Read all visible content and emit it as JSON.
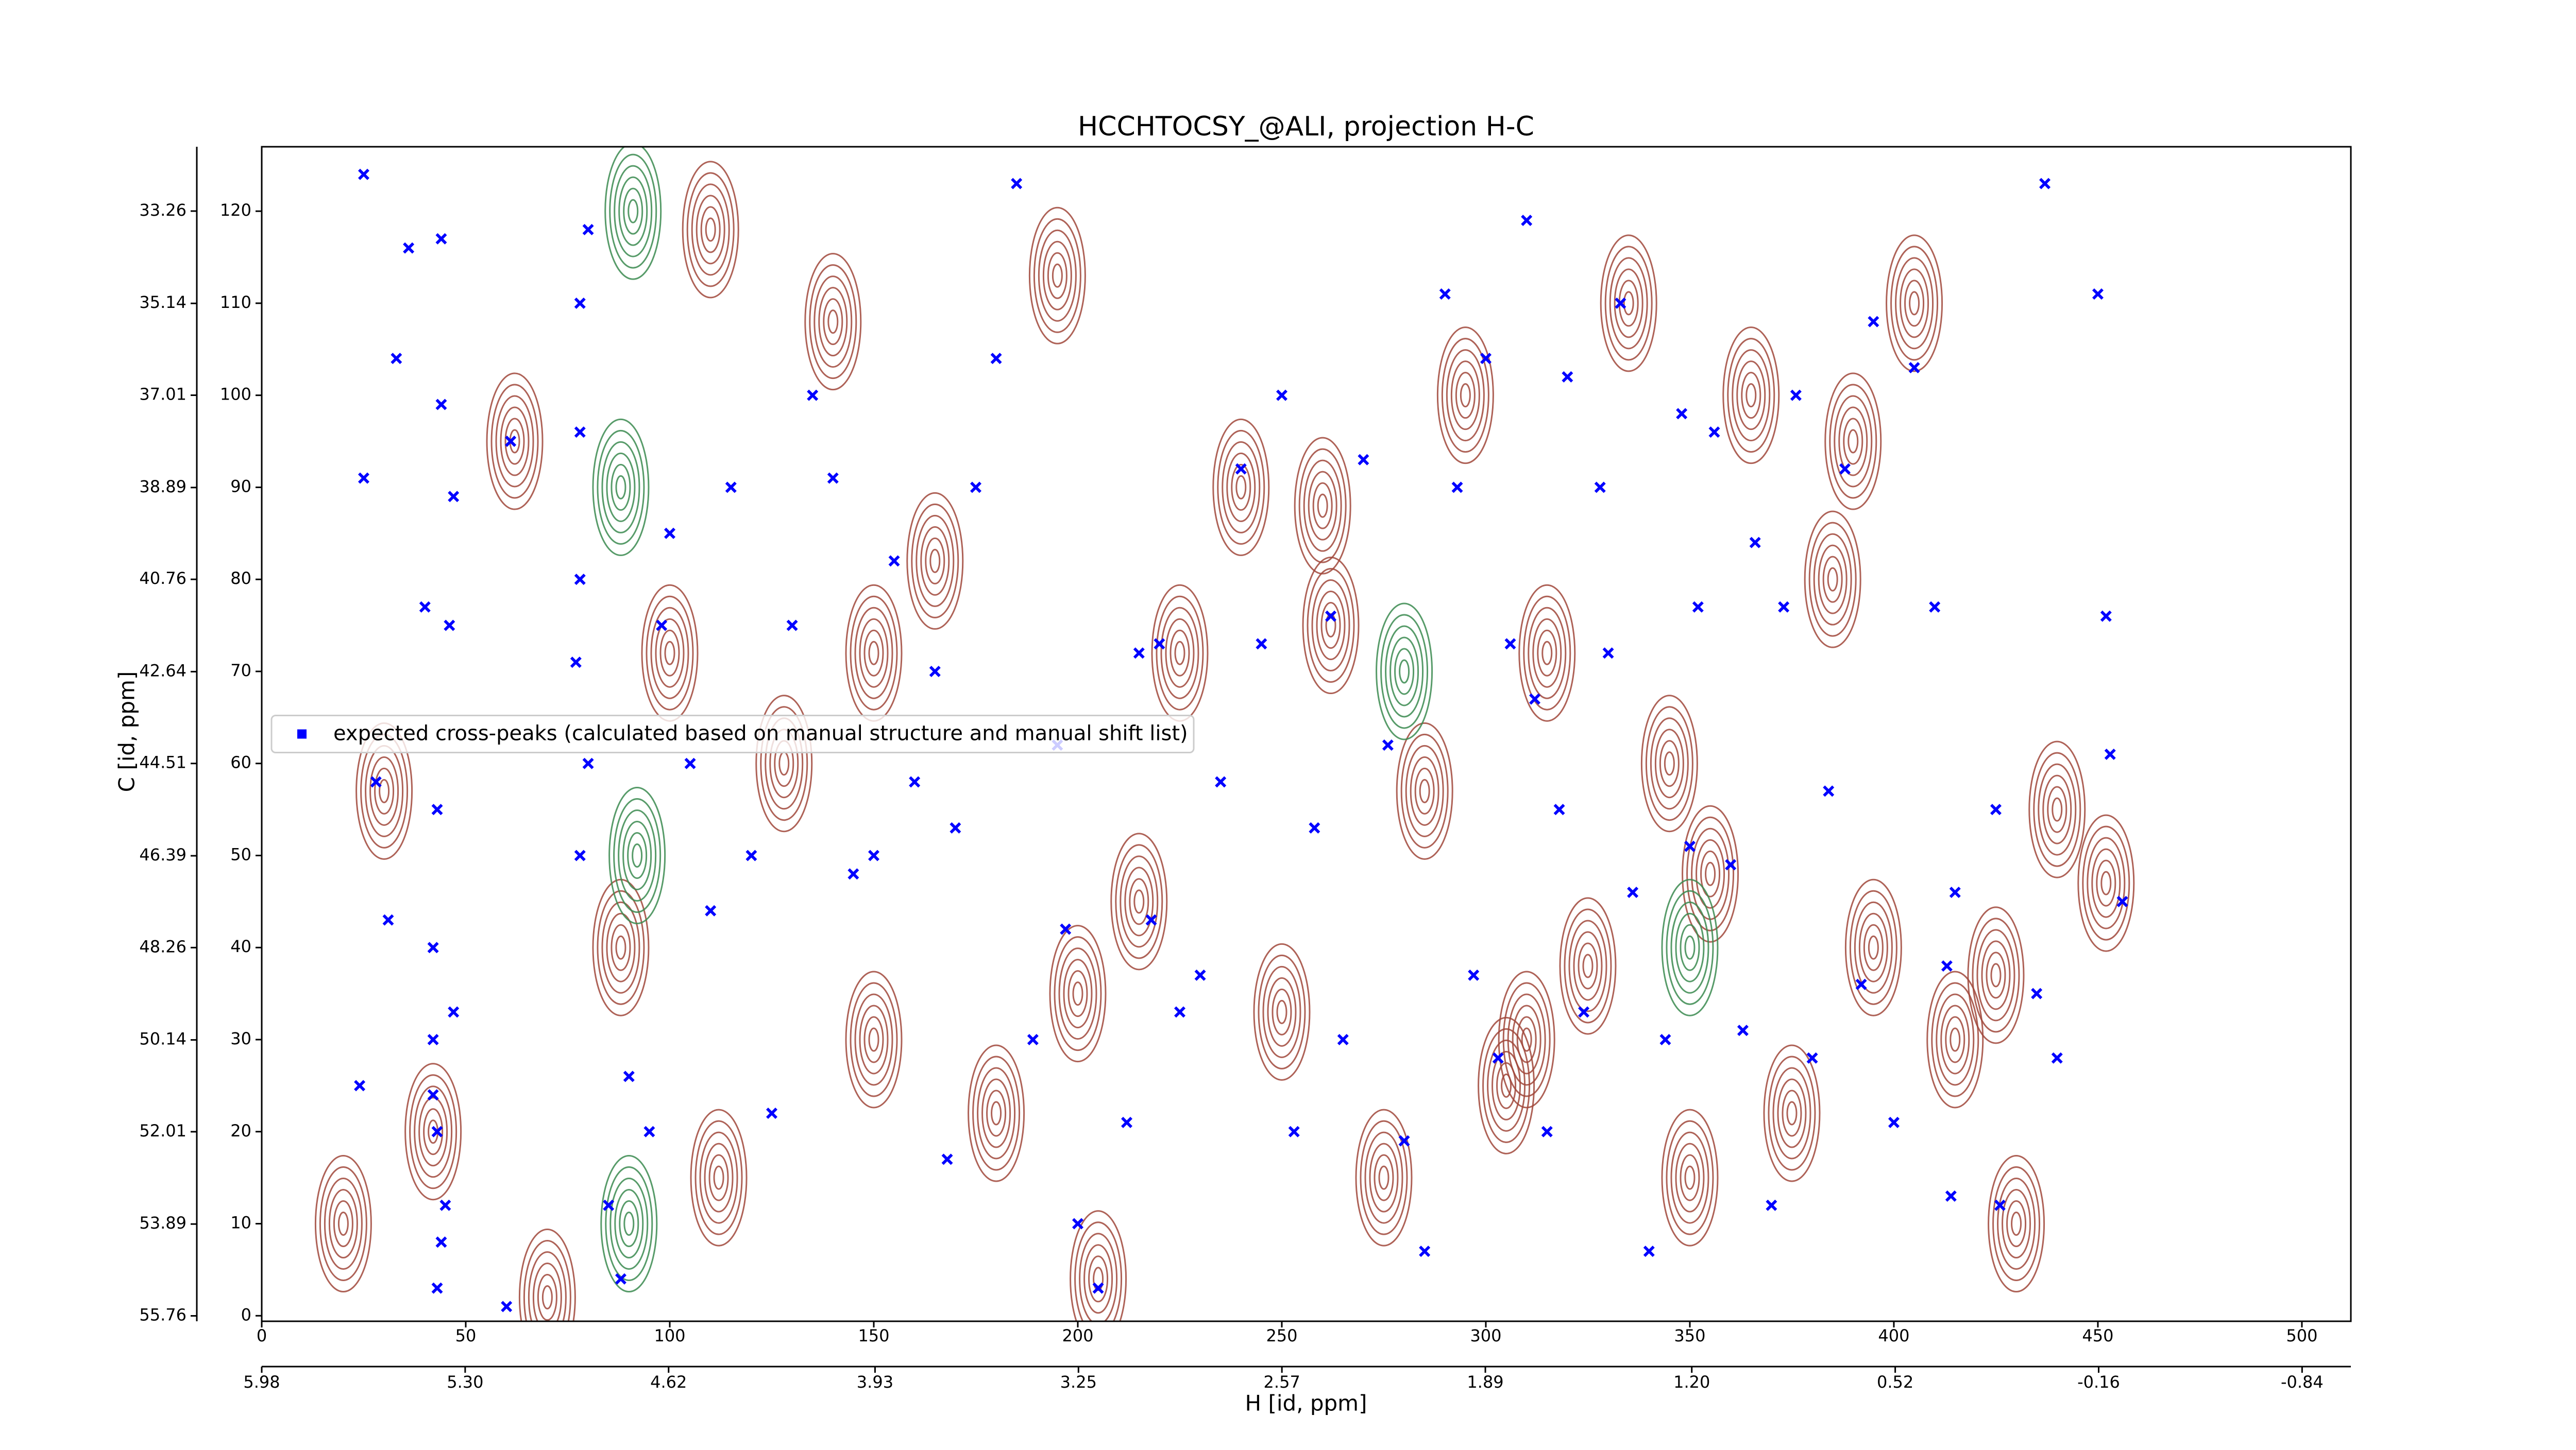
{
  "chart_data": {
    "type": "scatter",
    "title": "HCCHTOCSY_@ALI, projection H-C",
    "x_label": "H [id, ppm]",
    "y_label": "C [id, ppm]",
    "xlim": [
      0,
      512
    ],
    "ylim": [
      -0.6,
      127
    ],
    "xticks": [
      0,
      50,
      100,
      150,
      200,
      250,
      300,
      350,
      400,
      450,
      500
    ],
    "yticks": [
      0,
      10,
      20,
      30,
      40,
      50,
      60,
      70,
      80,
      90,
      100,
      110,
      120
    ],
    "x2lim": [
      5.98,
      -1.003
    ],
    "x2ticks": [
      5.98,
      {
        "value": 5.3,
        "label": "5.30"
      },
      4.62,
      3.93,
      3.25,
      2.57,
      1.89,
      {
        "value": 1.2,
        "label": "1.20"
      },
      0.52,
      -0.16,
      -0.84
    ],
    "y2lim": [
      55.87,
      31.95
    ],
    "y2ticks": [
      55.76,
      53.89,
      52.01,
      50.14,
      48.26,
      46.39,
      44.51,
      42.64,
      40.76,
      38.89,
      37.01,
      35.14,
      33.26
    ],
    "legend_loc": "center left",
    "series": [
      {
        "name": "expected cross-peaks (calculated based on manual structure and manual shift list)",
        "color": "#0000ff",
        "x": [
          25,
          36,
          44,
          33,
          44,
          25,
          47,
          61,
          40,
          46,
          28,
          43,
          31,
          42,
          47,
          42,
          24,
          42,
          43,
          45,
          44,
          43,
          60,
          78,
          80,
          77,
          78,
          78,
          78,
          80,
          85,
          88,
          90,
          95,
          98,
          100,
          105,
          110,
          115,
          120,
          125,
          130,
          135,
          140,
          145,
          150,
          155,
          160,
          165,
          168,
          170,
          175,
          180,
          185,
          189,
          195,
          197,
          200,
          205,
          212,
          215,
          218,
          220,
          225,
          230,
          235,
          240,
          245,
          250,
          253,
          258,
          262,
          265,
          270,
          276,
          280,
          285,
          290,
          293,
          297,
          300,
          303,
          306,
          310,
          312,
          315,
          318,
          320,
          324,
          328,
          330,
          333,
          336,
          340,
          344,
          348,
          350,
          352,
          356,
          360,
          363,
          366,
          370,
          373,
          376,
          380,
          384,
          388,
          392,
          395,
          400,
          405,
          410,
          413,
          415,
          425,
          435,
          440,
          450,
          452,
          456,
          437,
          453,
          414,
          426
        ],
        "values": [
          124,
          116,
          117,
          104,
          99,
          91,
          89,
          95,
          77,
          75,
          58,
          55,
          43,
          40,
          33,
          30,
          25,
          24,
          20,
          12,
          8,
          3,
          1,
          50,
          60,
          71,
          80,
          96,
          110,
          118,
          12,
          4,
          26,
          20,
          75,
          85,
          60,
          44,
          90,
          50,
          22,
          75,
          100,
          91,
          48,
          50,
          82,
          58,
          70,
          17,
          53,
          90,
          104,
          123,
          30,
          62,
          42,
          10,
          3,
          21,
          72,
          43,
          73,
          33,
          37,
          58,
          92,
          73,
          100,
          20,
          53,
          76,
          30,
          93,
          62,
          19,
          7,
          111,
          90,
          37,
          104,
          28,
          73,
          119,
          67,
          20,
          55,
          102,
          33,
          90,
          72,
          110,
          46,
          7,
          30,
          98,
          51,
          77,
          96,
          49,
          31,
          84,
          12,
          77,
          100,
          28,
          57,
          92,
          36,
          108,
          21,
          103,
          77,
          38,
          46,
          55,
          35,
          28,
          111,
          76,
          45,
          123,
          61,
          13,
          12
        ]
      }
    ],
    "contours": [
      {
        "color": "#a0473a",
        "x": [
          20,
          42,
          62,
          88,
          100,
          112,
          128,
          140,
          150,
          165,
          180,
          195,
          205,
          215,
          225,
          240,
          250,
          262,
          275,
          285,
          295,
          305,
          315,
          325,
          335,
          345,
          355,
          365,
          375,
          385,
          395,
          405,
          415,
          425,
          440,
          452,
          30,
          70,
          110,
          150,
          200,
          260,
          310,
          350,
          390,
          430
        ],
        "y": [
          10,
          20,
          95,
          40,
          72,
          15,
          60,
          108,
          30,
          82,
          22,
          113,
          4,
          45,
          72,
          90,
          33,
          75,
          15,
          57,
          100,
          25,
          72,
          38,
          110,
          60,
          48,
          100,
          22,
          80,
          40,
          110,
          30,
          37,
          55,
          47,
          57,
          2,
          118,
          72,
          35,
          88,
          30,
          15,
          95,
          10
        ]
      },
      {
        "color": "#3a8a4f",
        "x": [
          90,
          92,
          88,
          91,
          350,
          280
        ],
        "y": [
          10,
          50,
          90,
          120,
          40,
          70
        ]
      }
    ]
  }
}
